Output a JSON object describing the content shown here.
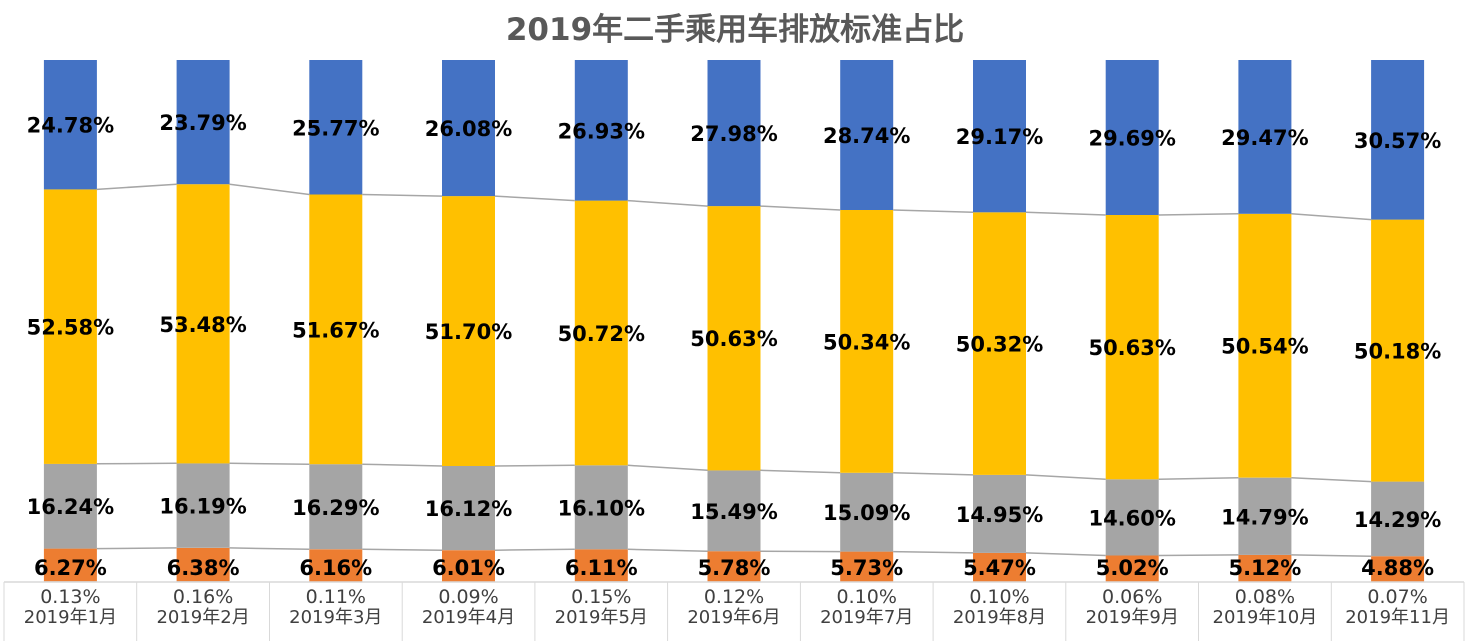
{
  "chart_data": {
    "type": "bar",
    "stacked": "percent",
    "title": "2019年二手乘用车排放标准占比",
    "categories": [
      "2019年1月",
      "2019年2月",
      "2019年3月",
      "2019年4月",
      "2019年5月",
      "2019年6月",
      "2019年7月",
      "2019年8月",
      "2019年9月",
      "2019年10月",
      "2019年11月"
    ],
    "series": [
      {
        "color": "#808080",
        "values_label": [
          "0.13%",
          "0.16%",
          "0.11%",
          "0.09%",
          "0.15%",
          "0.12%",
          "0.10%",
          "0.10%",
          "0.06%",
          "0.08%",
          "0.07%"
        ],
        "values": [
          0.13,
          0.16,
          0.11,
          0.09,
          0.15,
          0.12,
          0.1,
          0.1,
          0.06,
          0.08,
          0.07
        ]
      },
      {
        "color": "#ED7D31",
        "values_label": [
          "6.27%",
          "6.38%",
          "6.16%",
          "6.01%",
          "6.11%",
          "5.78%",
          "5.73%",
          "5.47%",
          "5.02%",
          "5.12%",
          "4.88%"
        ],
        "values": [
          6.27,
          6.38,
          6.16,
          6.01,
          6.11,
          5.78,
          5.73,
          5.47,
          5.02,
          5.12,
          4.88
        ]
      },
      {
        "color": "#A5A5A5",
        "values_label": [
          "16.24%",
          "16.19%",
          "16.29%",
          "16.12%",
          "16.10%",
          "15.49%",
          "15.09%",
          "14.95%",
          "14.60%",
          "14.79%",
          "14.29%"
        ],
        "values": [
          16.24,
          16.19,
          16.29,
          16.12,
          16.1,
          15.49,
          15.09,
          14.95,
          14.6,
          14.79,
          14.29
        ]
      },
      {
        "color": "#FFC000",
        "values_label": [
          "52.58%",
          "53.48%",
          "51.67%",
          "51.70%",
          "50.72%",
          "50.63%",
          "50.34%",
          "50.32%",
          "50.63%",
          "50.54%",
          "50.18%"
        ],
        "values": [
          52.58,
          53.48,
          51.67,
          51.7,
          50.72,
          50.63,
          50.34,
          50.32,
          50.63,
          50.54,
          50.18
        ]
      },
      {
        "color": "#4472C4",
        "values_label": [
          "24.78%",
          "23.79%",
          "25.77%",
          "26.08%",
          "26.93%",
          "27.98%",
          "28.74%",
          "29.17%",
          "29.69%",
          "29.47%",
          "30.57%"
        ],
        "values": [
          24.78,
          23.79,
          25.77,
          26.08,
          26.93,
          27.98,
          28.74,
          29.17,
          29.69,
          29.47,
          30.57
        ]
      }
    ],
    "ylim": [
      0,
      100
    ],
    "series_lines": true,
    "legend": "none",
    "grid": false
  }
}
